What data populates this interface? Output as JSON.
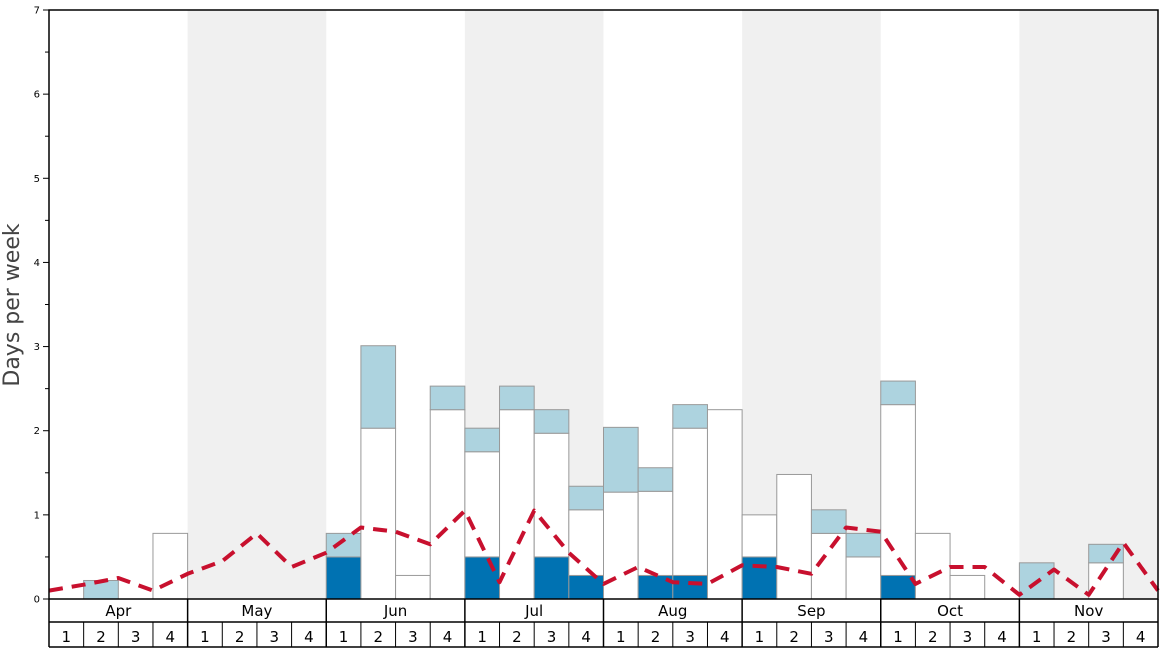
{
  "chart_data": {
    "type": "bar",
    "stacked": true,
    "ylabel": "Days per week",
    "ylim": [
      0,
      7
    ],
    "yticks": [
      "0",
      "1",
      "2",
      "3",
      "4",
      "5",
      "6",
      "7"
    ],
    "months": [
      "Apr",
      "May",
      "Jun",
      "Jul",
      "Aug",
      "Sep",
      "Oct",
      "Nov"
    ],
    "week_labels": [
      "1",
      "2",
      "3",
      "4"
    ],
    "colors": {
      "dark": "#0072b2",
      "white": "#ffffff",
      "light": "#add3df",
      "line": "#c8102e",
      "shade": "#f0f0f0",
      "border": "#999999"
    },
    "series": [
      {
        "name": "dark blue",
        "values": [
          0,
          0,
          0,
          0,
          0,
          0,
          0,
          0,
          0.5,
          0,
          0,
          0,
          0.5,
          0,
          0.5,
          0.28,
          0,
          0.28,
          0.28,
          0,
          0.5,
          0,
          0,
          0,
          0.28,
          0,
          0,
          0,
          0,
          0,
          0,
          0
        ]
      },
      {
        "name": "white",
        "values": [
          0,
          0,
          0,
          0.78,
          0,
          0,
          0,
          0,
          0,
          2.03,
          0.28,
          2.25,
          1.25,
          2.25,
          1.47,
          0.78,
          1.27,
          1,
          1.75,
          2.25,
          0.5,
          1.48,
          0.78,
          0.5,
          2.03,
          0.78,
          0.28,
          0,
          0,
          0,
          0.43,
          0
        ]
      },
      {
        "name": "light blue",
        "values": [
          0,
          0.22,
          0,
          0,
          0,
          0,
          0,
          0,
          0.28,
          0.98,
          0,
          0.28,
          0.28,
          0.28,
          0.28,
          0.28,
          0.77,
          0.28,
          0.28,
          0,
          0,
          0,
          0.28,
          0.28,
          0.28,
          0,
          0,
          0,
          0.43,
          0,
          0.22,
          0
        ]
      }
    ],
    "line": {
      "name": "red dashed",
      "values": [
        0.1,
        0.17,
        0.25,
        0.1,
        0.3,
        0.45,
        0.78,
        0.38,
        0.55,
        0.85,
        0.8,
        0.65,
        1.05,
        0.2,
        1.05,
        0.55,
        0.18,
        0.38,
        0.2,
        0.18,
        0.4,
        0.38,
        0.3,
        0.85,
        0.8,
        0.18,
        0.38,
        0.38,
        0.05,
        0.35,
        0.05,
        0.67,
        0.1
      ]
    }
  }
}
